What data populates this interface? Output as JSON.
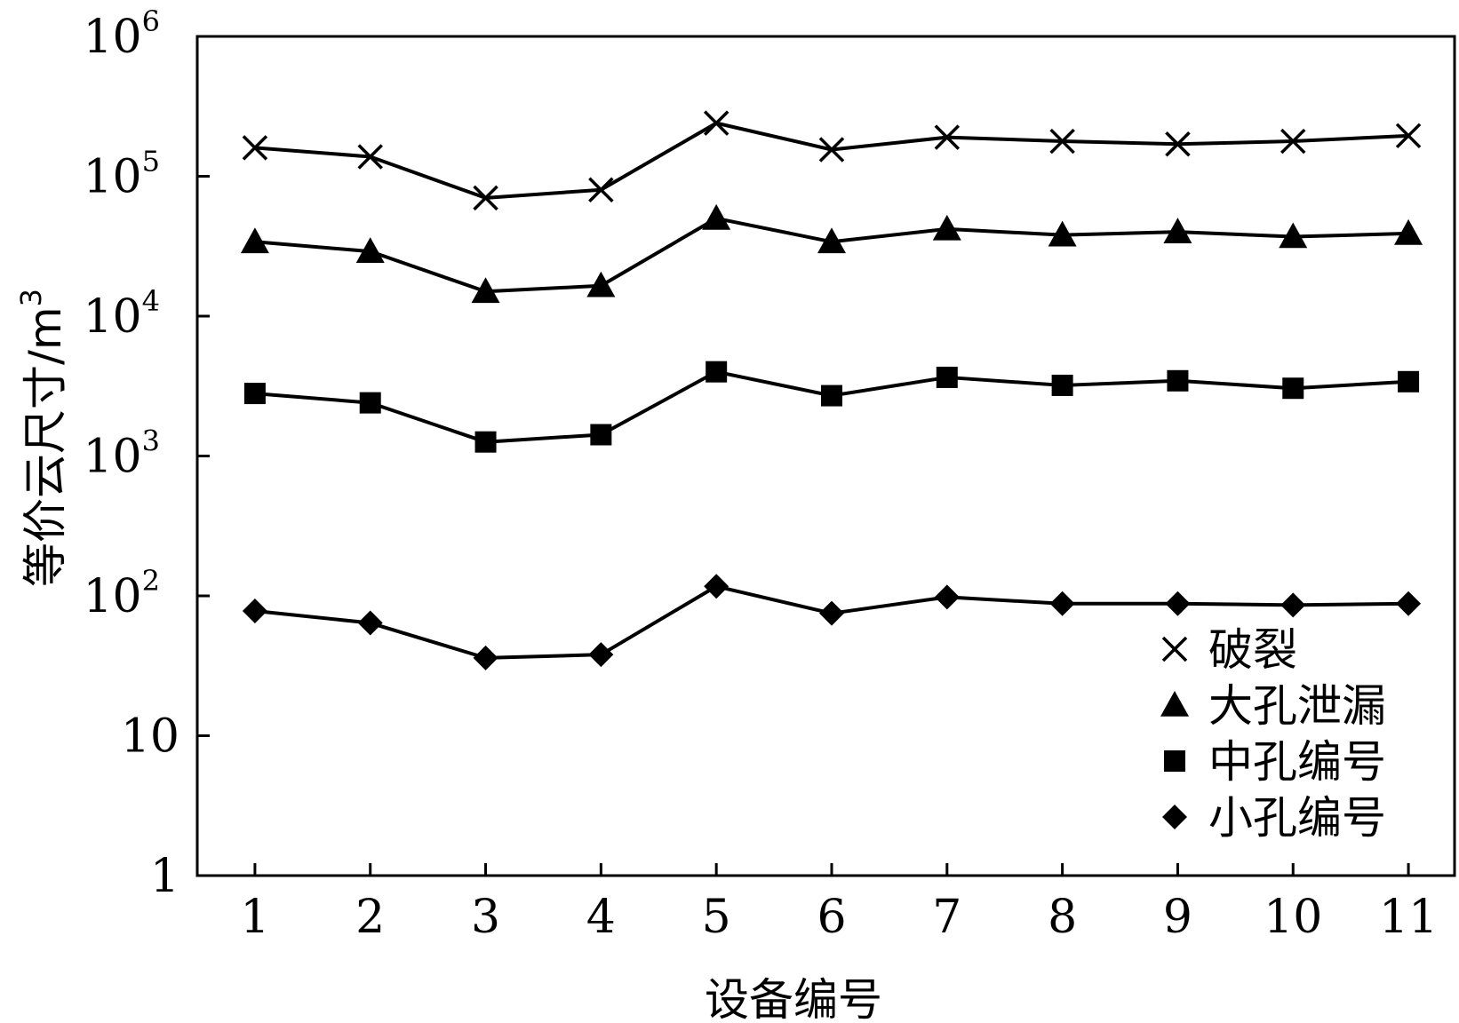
{
  "chart_data": {
    "type": "line",
    "title": "",
    "xlabel": "设备编号",
    "ylabel": "等价云尺寸/m",
    "ylabel_sup": "3",
    "yscale": "log",
    "ylim": [
      1,
      1000000
    ],
    "xlim": [
      0.5,
      11.4
    ],
    "x": [
      1,
      2,
      3,
      4,
      5,
      6,
      7,
      8,
      9,
      10,
      11
    ],
    "x_tick_labels": [
      "1",
      "2",
      "3",
      "4",
      "5",
      "6",
      "7",
      "8",
      "9",
      "10",
      "11"
    ],
    "y_ticks": [
      {
        "value": 1,
        "base": "1",
        "exp": ""
      },
      {
        "value": 10,
        "base": "10",
        "exp": ""
      },
      {
        "value": 100,
        "base": "10",
        "exp": "2"
      },
      {
        "value": 1000,
        "base": "10",
        "exp": "3"
      },
      {
        "value": 10000,
        "base": "10",
        "exp": "4"
      },
      {
        "value": 100000,
        "base": "10",
        "exp": "5"
      },
      {
        "value": 1000000,
        "base": "10",
        "exp": "6"
      }
    ],
    "grid": false,
    "legend_position": "bottom-right",
    "series": [
      {
        "name": "破裂",
        "marker": "x",
        "values": [
          160000,
          138000,
          70000,
          80000,
          240000,
          155000,
          190000,
          178000,
          170000,
          178000,
          195000
        ]
      },
      {
        "name": "大孔泄漏",
        "marker": "triangle",
        "values": [
          34000,
          29000,
          15000,
          16500,
          50000,
          34000,
          42000,
          38000,
          40000,
          37000,
          39000
        ]
      },
      {
        "name": "中孔编号",
        "marker": "square",
        "values": [
          2800,
          2400,
          1260,
          1420,
          4000,
          2700,
          3650,
          3200,
          3450,
          3050,
          3400
        ]
      },
      {
        "name": "小孔编号",
        "marker": "diamond",
        "values": [
          78,
          64,
          36,
          38,
          117,
          75,
          98,
          88,
          88,
          86,
          88
        ]
      }
    ]
  }
}
